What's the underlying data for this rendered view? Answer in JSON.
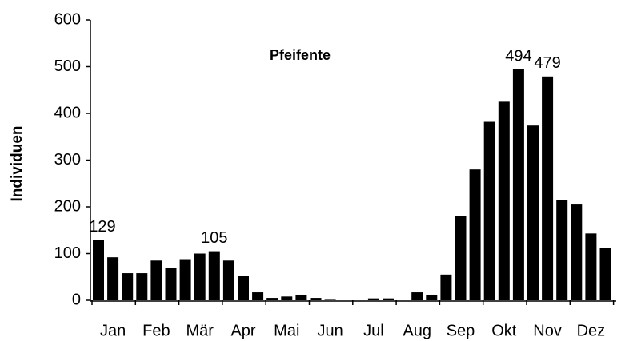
{
  "chart_data": {
    "type": "bar",
    "title": "Pfeifente",
    "y_label": "Individuen",
    "categories": [
      null,
      "Jan",
      null,
      null,
      "Feb",
      null,
      null,
      "Mär",
      null,
      null,
      "Apr",
      null,
      null,
      "Mai",
      null,
      null,
      "Jun",
      null,
      null,
      "Jul",
      null,
      null,
      "Aug",
      null,
      null,
      "Sep",
      null,
      null,
      "Okt",
      null,
      null,
      "Nov",
      null,
      null,
      "Dez",
      null
    ],
    "values": [
      129,
      92,
      58,
      58,
      85,
      70,
      88,
      100,
      105,
      85,
      52,
      17,
      5,
      8,
      12,
      5,
      1,
      0,
      0,
      4,
      4,
      0,
      17,
      12,
      55,
      180,
      280,
      382,
      425,
      494,
      374,
      479,
      215,
      205,
      143,
      112
    ],
    "value_labels": [
      "129",
      null,
      null,
      null,
      null,
      null,
      null,
      null,
      "105",
      null,
      null,
      null,
      null,
      null,
      null,
      null,
      null,
      null,
      null,
      null,
      null,
      null,
      null,
      null,
      null,
      null,
      null,
      null,
      null,
      "494",
      null,
      "479",
      null,
      null,
      null,
      null
    ],
    "color": "#000000",
    "ylim": [
      0,
      600
    ],
    "yticks": [
      0,
      100,
      200,
      300,
      400,
      500,
      600
    ],
    "grid": false
  }
}
